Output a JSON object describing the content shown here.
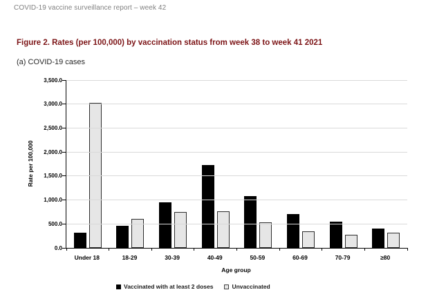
{
  "page": {
    "header": "COVID-19 vaccine surveillance report – week 42"
  },
  "figure": {
    "title": "Figure 2. Rates (per 100,000) by vaccination status from week 38 to week 41 2021",
    "subtitle": "(a) COVID-19 cases"
  },
  "colors": {
    "title_text": "#7c1416",
    "header_text": "#7f7f7f",
    "gridline": "#d9d9d9",
    "axis": "#000000",
    "bar_vaccinated": "#000000",
    "bar_unvaccinated_fill": "#e6e6e6",
    "bar_unvaccinated_border": "#2b2b2b"
  },
  "chart_data": {
    "type": "bar",
    "title": "Figure 2. Rates (per 100,000) by vaccination status from week 38 to week 41 2021",
    "subtitle": "(a) COVID-19 cases",
    "categories": [
      "Under 18",
      "18-29",
      "30-39",
      "40-49",
      "50-59",
      "60-69",
      "70-79",
      "≥80"
    ],
    "series": [
      {
        "name": "Vaccinated with at least 2 doses",
        "values": [
          310,
          460,
          950,
          1730,
          1080,
          710,
          545,
          410
        ]
      },
      {
        "name": "Unvaccinated",
        "values": [
          3020,
          610,
          745,
          770,
          530,
          350,
          270,
          310
        ]
      }
    ],
    "xlabel": "Age group",
    "ylabel": "Rate per 100,000",
    "ylim": [
      0,
      3500
    ],
    "ytick_step": 500,
    "ytick_labels": [
      "0.0",
      "500.0",
      "1,000.0",
      "1,500.0",
      "2,000.0",
      "2,500.0",
      "3,000.0",
      "3,500.0"
    ],
    "grid": "horizontal",
    "legend_position": "bottom"
  }
}
